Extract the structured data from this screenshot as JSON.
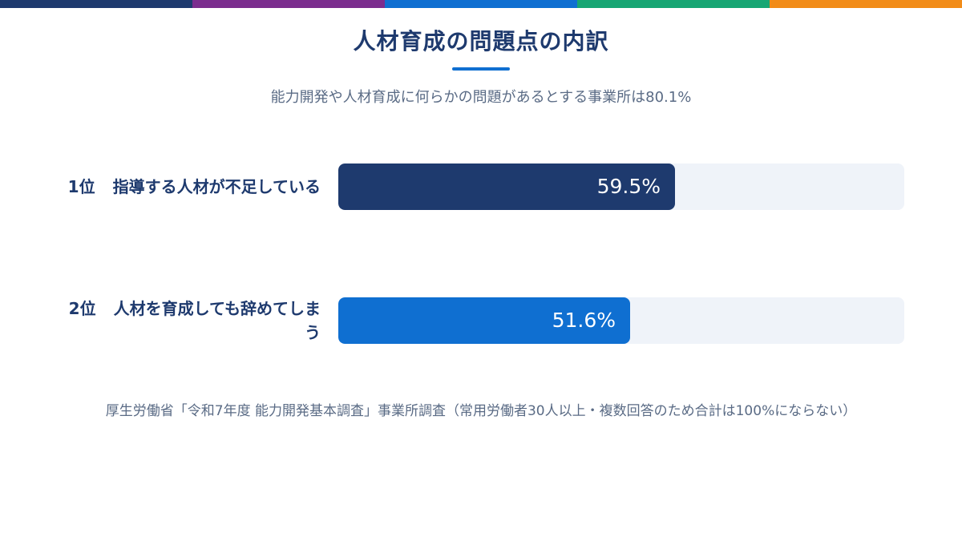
{
  "stripe_colors": [
    "#1e3a6e",
    "#7b2d8e",
    "#0f6fd1",
    "#17a673",
    "#f28c18"
  ],
  "header": {
    "title": "人材育成の問題点の内訳",
    "underline_color": "#0f6fd1",
    "subtitle": "能力開発や人材育成に何らかの問題があるとする事業所は80.1%"
  },
  "chart_data": {
    "type": "bar",
    "orientation": "horizontal",
    "xlim": [
      0,
      100
    ],
    "unit": "%",
    "bars": [
      {
        "rank": "1位",
        "category": "指導する人材が不足している",
        "value": 59.5,
        "value_label": "59.5%",
        "color": "#1e3a6e"
      },
      {
        "rank": "2位",
        "category": "人材を育成しても辞めてしまう",
        "value": 51.6,
        "value_label": "51.6%",
        "color": "#0f6fd1"
      }
    ]
  },
  "footnote": "厚生労働省「令和7年度 能力開発基本調査」事業所調査（常用労働者30人以上・複数回答のため合計は100%にならない）"
}
